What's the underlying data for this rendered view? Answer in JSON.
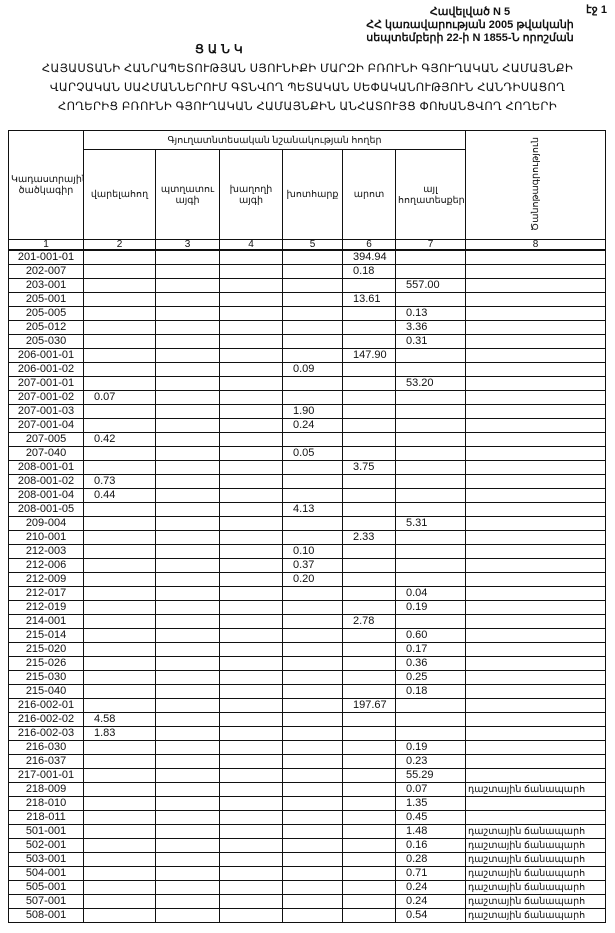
{
  "page_number": "էջ 1",
  "annex": {
    "line1": "Հավելված N 5",
    "line2": "ՀՀ կառավարության 2005 թվականի",
    "line3": "սեպտեմբերի 22-ի N 1855-Ն որոշման"
  },
  "list_title": "ՑԱՆԿ",
  "main_title": {
    "line1": "ՀԱՅԱՍՏԱՆԻ ՀԱՆՐԱՊԵՏՈՒԹՅԱՆ ՍՅՈՒՆԻՔԻ ՄԱՐԶԻ ԲՌՈՒՆԻ ԳՅՈՒՂԱԿԱՆ ՀԱՄԱՅՆՔԻ",
    "line2": "ՎԱՐՉԱԿԱՆ ՍԱՀՄԱՆՆԵՐՈՒՄ ԳՏՆՎՈՂ ՊԵՏԱԿԱՆ ՍԵՓԱԿԱՆՈՒԹՅՈՒՆ ՀԱՆԴԻՍԱՑՈՂ",
    "line3": "ՀՈՂԵՐԻՑ ԲՌՈՒՆԻ ԳՅՈՒՂԱԿԱՆ ՀԱՄԱՅՆՔԻՆ ԱՆՀԱՏՈՒՅՑ ՓՈԽԱՆՑՎՈՂ ՀՈՂԵՐԻ"
  },
  "table": {
    "headers": {
      "code": "Կադաստրային ծածկագիր",
      "group": "Գյուղատնտեսական նշանակության հողեր",
      "arable": "վարելահող",
      "orchard": "պտղատու այգի",
      "vineyard": "խաղողի այգի",
      "hayfield": "խոտհարք",
      "pasture": "արոտ",
      "other": "այլ հողատեսքեր",
      "note": "Ծանոթագրություն"
    },
    "column_numbers": [
      "1",
      "2",
      "3",
      "4",
      "5",
      "6",
      "7",
      "8"
    ],
    "rows": [
      {
        "code": "201-001-01",
        "pasture": "394.94"
      },
      {
        "code": "202-007",
        "pasture": "0.18"
      },
      {
        "code": "203-001",
        "other": "557.00"
      },
      {
        "code": "205-001",
        "pasture": "13.61"
      },
      {
        "code": "205-005",
        "other": "0.13"
      },
      {
        "code": "205-012",
        "other": "3.36"
      },
      {
        "code": "205-030",
        "other": "0.31"
      },
      {
        "code": "206-001-01",
        "pasture": "147.90"
      },
      {
        "code": "206-001-02",
        "hayfield": "0.09"
      },
      {
        "code": "207-001-01",
        "other": "53.20"
      },
      {
        "code": "207-001-02",
        "arable": "0.07"
      },
      {
        "code": "207-001-03",
        "hayfield": "1.90"
      },
      {
        "code": "207-001-04",
        "hayfield": "0.24"
      },
      {
        "code": "207-005",
        "arable": "0.42"
      },
      {
        "code": "207-040",
        "hayfield": "0.05"
      },
      {
        "code": "208-001-01",
        "pasture": "3.75"
      },
      {
        "code": "208-001-02",
        "arable": "0.73"
      },
      {
        "code": "208-001-04",
        "arable": "0.44"
      },
      {
        "code": "208-001-05",
        "hayfield": "4.13"
      },
      {
        "code": "209-004",
        "other": "5.31"
      },
      {
        "code": "210-001",
        "pasture": "2.33"
      },
      {
        "code": "212-003",
        "hayfield": "0.10"
      },
      {
        "code": "212-006",
        "hayfield": "0.37"
      },
      {
        "code": "212-009",
        "hayfield": "0.20"
      },
      {
        "code": "212-017",
        "other": "0.04"
      },
      {
        "code": "212-019",
        "other": "0.19"
      },
      {
        "code": "214-001",
        "pasture": "2.78"
      },
      {
        "code": "215-014",
        "other": "0.60"
      },
      {
        "code": "215-020",
        "other": "0.17"
      },
      {
        "code": "215-026",
        "other": "0.36"
      },
      {
        "code": "215-030",
        "other": "0.25"
      },
      {
        "code": "215-040",
        "other": "0.18"
      },
      {
        "code": "216-002-01",
        "pasture": "197.67"
      },
      {
        "code": "216-002-02",
        "arable": "4.58"
      },
      {
        "code": "216-002-03",
        "arable": "1.83"
      },
      {
        "code": "216-030",
        "other": "0.19"
      },
      {
        "code": "216-037",
        "other": "0.23"
      },
      {
        "code": "217-001-01",
        "other": "55.29"
      },
      {
        "code": "218-009",
        "other": "0.07",
        "note": "դաշտային ճանապարհ"
      },
      {
        "code": "218-010",
        "other": "1.35"
      },
      {
        "code": "218-011",
        "other": "0.45"
      },
      {
        "code": "501-001",
        "other": "1.48",
        "note": "դաշտային ճանապարհ"
      },
      {
        "code": "502-001",
        "other": "0.16",
        "note": "դաշտային ճանապարհ"
      },
      {
        "code": "503-001",
        "other": "0.28",
        "note": "դաշտային ճանապարհ"
      },
      {
        "code": "504-001",
        "other": "0.71",
        "note": "դաշտային ճանապարհ"
      },
      {
        "code": "505-001",
        "other": "0.24",
        "note": "դաշտային ճանապարհ"
      },
      {
        "code": "507-001",
        "other": "0.24",
        "note": "դաշտային ճանապարհ"
      },
      {
        "code": "508-001",
        "other": "0.54",
        "note": "դաշտային ճանապարհ"
      }
    ]
  }
}
